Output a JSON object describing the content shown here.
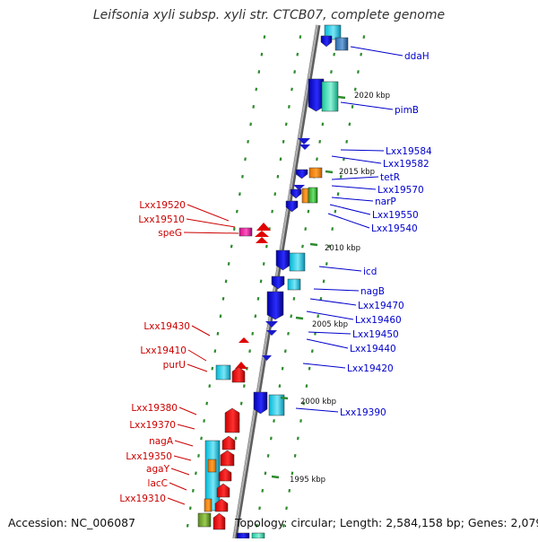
{
  "title": "Leifsonia xyli subsp. xyli str. CTCB07, complete genome",
  "footer": {
    "accession": "Accession: NC_006087",
    "topology": "Topology: circular; Length: 2,584,158 bp; Genes: 2,079"
  },
  "colors": {
    "forward_label": "#0000cc",
    "reverse_label": "#cc0000",
    "backbone": "#8a8a8a",
    "tick": "#2e8b2e"
  },
  "kbp_markers": [
    "2020 kbp",
    "2015 kbp",
    "2010 kbp",
    "2005 kbp",
    "2000 kbp",
    "1995 kbp"
  ],
  "forward_genes": [
    "ddaH",
    "pimB",
    "Lxx19584",
    "Lxx19582",
    "tetR",
    "Lxx19570",
    "narP",
    "Lxx19550",
    "Lxx19540",
    "icd",
    "nagB",
    "Lxx19470",
    "Lxx19460",
    "Lxx19450",
    "Lxx19440",
    "Lxx19420",
    "Lxx19390"
  ],
  "reverse_genes": [
    "Lxx19520",
    "Lxx19510",
    "speG",
    "Lxx19430",
    "Lxx19410",
    "purU",
    "Lxx19380",
    "Lxx19370",
    "nagA",
    "Lxx19350",
    "agaY",
    "lacC",
    "Lxx19310"
  ]
}
